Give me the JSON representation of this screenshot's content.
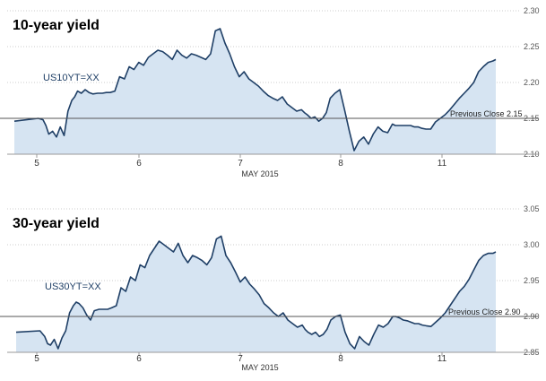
{
  "chart_data": [
    {
      "type": "area",
      "title": "10-year yield",
      "ticker": "US10YT=XX",
      "xlabel": "MAY 2015",
      "x_ticks": [
        "5",
        "6",
        "7",
        "8",
        "11"
      ],
      "y_ticks": [
        "2.30",
        "2.25",
        "2.20",
        "2.15",
        "2.10"
      ],
      "ylim": [
        2.1,
        2.3
      ],
      "reference_line": {
        "label": "Previous Close 2.15",
        "value": 2.15
      },
      "colors": {
        "line": "#1f3f66",
        "fill": "#d6e4f2",
        "reference": "#555555",
        "grid": "#cccccc"
      },
      "series": [
        {
          "x": [
            0,
            0.25,
            0.3,
            0.33,
            0.36,
            0.4,
            0.44,
            0.48,
            0.52,
            0.56,
            0.6,
            0.63,
            0.66,
            0.7,
            0.74,
            0.78,
            0.82,
            0.87,
            0.92,
            0.96,
            1.0,
            1.05,
            1.1,
            1.15,
            1.2,
            1.25,
            1.3,
            1.35,
            1.4,
            1.45,
            1.5,
            1.55,
            1.6,
            1.65,
            1.7,
            1.75,
            1.8,
            1.85,
            1.9,
            1.95,
            2.0,
            2.05,
            2.1,
            2.15,
            2.2,
            2.25,
            2.3,
            2.35,
            2.4,
            2.45,
            2.5,
            2.55,
            2.6,
            2.65,
            2.7,
            2.75,
            2.8,
            2.85,
            2.9,
            2.95,
            3.0,
            3.03,
            3.06,
            3.1,
            3.14,
            3.18,
            3.22,
            3.26,
            3.3,
            3.35,
            3.4,
            3.45,
            3.5,
            3.55,
            3.6,
            3.65,
            3.7,
            3.75,
            3.8,
            3.85,
            3.9,
            3.95,
            3.98,
            4.02,
            4.06,
            4.1,
            4.14,
            4.18,
            4.22,
            4.26,
            4.3,
            4.35,
            4.4,
            4.45,
            4.5,
            4.55,
            4.6,
            4.65,
            4.7,
            4.75,
            4.8,
            4.85,
            4.9,
            4.95,
            5.0,
            5.03
          ],
          "y": [
            2.146,
            2.15,
            2.148,
            2.14,
            2.128,
            2.132,
            2.124,
            2.138,
            2.126,
            2.16,
            2.175,
            2.18,
            2.188,
            2.185,
            2.19,
            2.186,
            2.184,
            2.185,
            2.185,
            2.186,
            2.186,
            2.188,
            2.208,
            2.205,
            2.222,
            2.218,
            2.228,
            2.224,
            2.235,
            2.24,
            2.245,
            2.243,
            2.238,
            2.232,
            2.245,
            2.238,
            2.234,
            2.24,
            2.238,
            2.235,
            2.232,
            2.24,
            2.272,
            2.275,
            2.255,
            2.24,
            2.222,
            2.208,
            2.215,
            2.205,
            2.2,
            2.195,
            2.188,
            2.182,
            2.178,
            2.175,
            2.18,
            2.17,
            2.165,
            2.16,
            2.162,
            2.158,
            2.155,
            2.15,
            2.152,
            2.146,
            2.15,
            2.158,
            2.178,
            2.185,
            2.19,
            2.162,
            2.132,
            2.105,
            2.118,
            2.124,
            2.114,
            2.128,
            2.138,
            2.132,
            2.13,
            2.142,
            2.14,
            2.14,
            2.14,
            2.14,
            2.14,
            2.138,
            2.138,
            2.136,
            2.135,
            2.135,
            2.145,
            2.15,
            2.155,
            2.162,
            2.17,
            2.178,
            2.185,
            2.192,
            2.2,
            2.215,
            2.222,
            2.228,
            2.23,
            2.232
          ]
        }
      ]
    },
    {
      "type": "area",
      "title": "30-year yield",
      "ticker": "US30YT=XX",
      "xlabel": "MAY 2015",
      "x_ticks": [
        "5",
        "6",
        "7",
        "8",
        "11"
      ],
      "y_ticks": [
        "3.05",
        "3.00",
        "2.95",
        "2.90",
        "2.85"
      ],
      "ylim": [
        2.85,
        3.05
      ],
      "reference_line": {
        "label": "Previous Close 2.90",
        "value": 2.9
      },
      "colors": {
        "line": "#1f3f66",
        "fill": "#d6e4f2",
        "reference": "#555555",
        "grid": "#cccccc"
      },
      "series": [
        {
          "x": [
            0,
            0.25,
            0.3,
            0.33,
            0.36,
            0.4,
            0.44,
            0.48,
            0.52,
            0.56,
            0.6,
            0.63,
            0.66,
            0.7,
            0.74,
            0.78,
            0.82,
            0.87,
            0.92,
            0.96,
            1.0,
            1.05,
            1.1,
            1.15,
            1.2,
            1.25,
            1.3,
            1.35,
            1.4,
            1.45,
            1.5,
            1.55,
            1.6,
            1.65,
            1.7,
            1.75,
            1.8,
            1.85,
            1.9,
            1.95,
            2.0,
            2.05,
            2.1,
            2.15,
            2.2,
            2.25,
            2.3,
            2.35,
            2.4,
            2.45,
            2.5,
            2.55,
            2.6,
            2.65,
            2.7,
            2.75,
            2.8,
            2.85,
            2.9,
            2.95,
            3.0,
            3.03,
            3.06,
            3.1,
            3.14,
            3.18,
            3.22,
            3.26,
            3.3,
            3.35,
            3.4,
            3.45,
            3.5,
            3.55,
            3.6,
            3.65,
            3.7,
            3.75,
            3.8,
            3.85,
            3.9,
            3.95,
            3.98,
            4.02,
            4.06,
            4.1,
            4.14,
            4.18,
            4.22,
            4.26,
            4.3,
            4.35,
            4.4,
            4.45,
            4.5,
            4.55,
            4.6,
            4.65,
            4.7,
            4.75,
            4.8,
            4.85,
            4.9,
            4.95,
            5.0,
            5.03
          ],
          "y": [
            2.878,
            2.88,
            2.872,
            2.862,
            2.86,
            2.868,
            2.855,
            2.87,
            2.88,
            2.905,
            2.915,
            2.92,
            2.918,
            2.912,
            2.902,
            2.895,
            2.908,
            2.91,
            2.91,
            2.91,
            2.912,
            2.915,
            2.94,
            2.935,
            2.955,
            2.95,
            2.972,
            2.968,
            2.985,
            2.995,
            3.005,
            3.0,
            2.995,
            2.99,
            3.002,
            2.985,
            2.975,
            2.985,
            2.982,
            2.978,
            2.972,
            2.982,
            3.008,
            3.012,
            2.985,
            2.975,
            2.962,
            2.948,
            2.955,
            2.945,
            2.938,
            2.93,
            2.918,
            2.912,
            2.905,
            2.9,
            2.905,
            2.895,
            2.89,
            2.885,
            2.888,
            2.882,
            2.878,
            2.875,
            2.878,
            2.872,
            2.875,
            2.882,
            2.895,
            2.9,
            2.902,
            2.878,
            2.862,
            2.855,
            2.872,
            2.865,
            2.86,
            2.875,
            2.888,
            2.885,
            2.89,
            2.9,
            2.9,
            2.898,
            2.895,
            2.894,
            2.892,
            2.89,
            2.89,
            2.888,
            2.887,
            2.886,
            2.892,
            2.898,
            2.905,
            2.915,
            2.925,
            2.935,
            2.942,
            2.952,
            2.965,
            2.978,
            2.985,
            2.988,
            2.988,
            2.99
          ]
        }
      ]
    }
  ]
}
